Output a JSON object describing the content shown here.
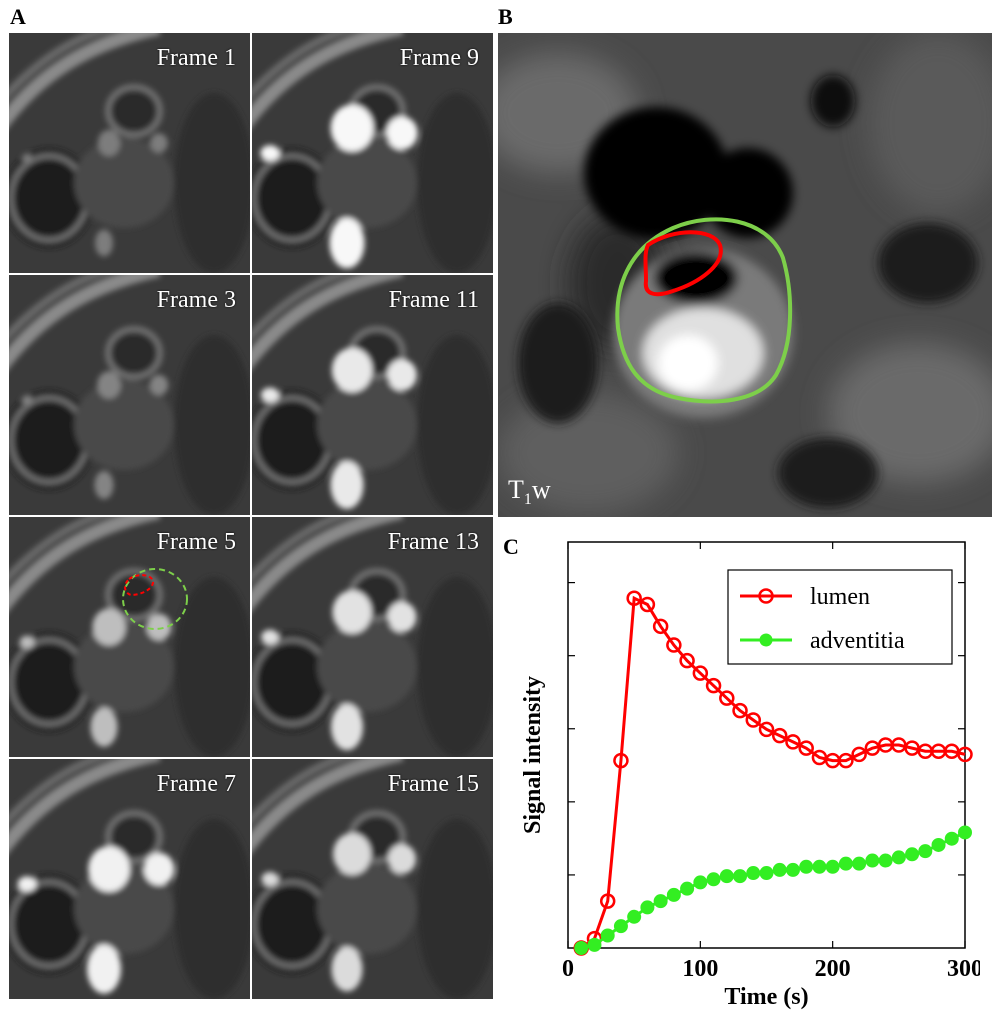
{
  "panels": {
    "a": "A",
    "b": "B",
    "c": "C"
  },
  "frames": [
    "Frame 1",
    "Frame 9",
    "Frame 3",
    "Frame 11",
    "Frame 5",
    "Frame 13",
    "Frame 7",
    "Frame 15"
  ],
  "panel_b": {
    "sequence_main": "T",
    "sequence_sub": "1",
    "sequence_suffix": "w"
  },
  "colors": {
    "lumen": "#ff0000",
    "adventitia": "#33ee22",
    "outer_contour": "#7dcf4a"
  },
  "chart_data": {
    "type": "line",
    "title": "",
    "xlabel": "Time (s)",
    "ylabel": "Signal intensity",
    "xlim": [
      0,
      300
    ],
    "ylim": [
      0,
      1.3
    ],
    "xticks": [
      0,
      100,
      200,
      300
    ],
    "y_tick_labels_shown": false,
    "legend_position": "top-right",
    "grid": false,
    "series": [
      {
        "name": "lumen",
        "marker": "open-circle",
        "color": "#ff0000",
        "x": [
          10,
          20,
          30,
          40,
          50,
          60,
          70,
          80,
          90,
          100,
          110,
          120,
          130,
          140,
          150,
          160,
          170,
          180,
          190,
          200,
          210,
          220,
          230,
          240,
          250,
          260,
          270,
          280,
          290,
          300
        ],
        "y": [
          0.0,
          0.03,
          0.15,
          0.6,
          1.12,
          1.1,
          1.03,
          0.97,
          0.92,
          0.88,
          0.84,
          0.8,
          0.76,
          0.73,
          0.7,
          0.68,
          0.66,
          0.64,
          0.61,
          0.6,
          0.6,
          0.62,
          0.64,
          0.65,
          0.65,
          0.64,
          0.63,
          0.63,
          0.63,
          0.62
        ]
      },
      {
        "name": "adventitia",
        "marker": "filled-circle",
        "color": "#33ee22",
        "x": [
          10,
          20,
          30,
          40,
          50,
          60,
          70,
          80,
          90,
          100,
          110,
          120,
          130,
          140,
          150,
          160,
          170,
          180,
          190,
          200,
          210,
          220,
          230,
          240,
          250,
          260,
          270,
          280,
          290,
          300
        ],
        "y": [
          0.0,
          0.01,
          0.04,
          0.07,
          0.1,
          0.13,
          0.15,
          0.17,
          0.19,
          0.21,
          0.22,
          0.23,
          0.23,
          0.24,
          0.24,
          0.25,
          0.25,
          0.26,
          0.26,
          0.26,
          0.27,
          0.27,
          0.28,
          0.28,
          0.29,
          0.3,
          0.31,
          0.33,
          0.35,
          0.37
        ]
      }
    ]
  }
}
